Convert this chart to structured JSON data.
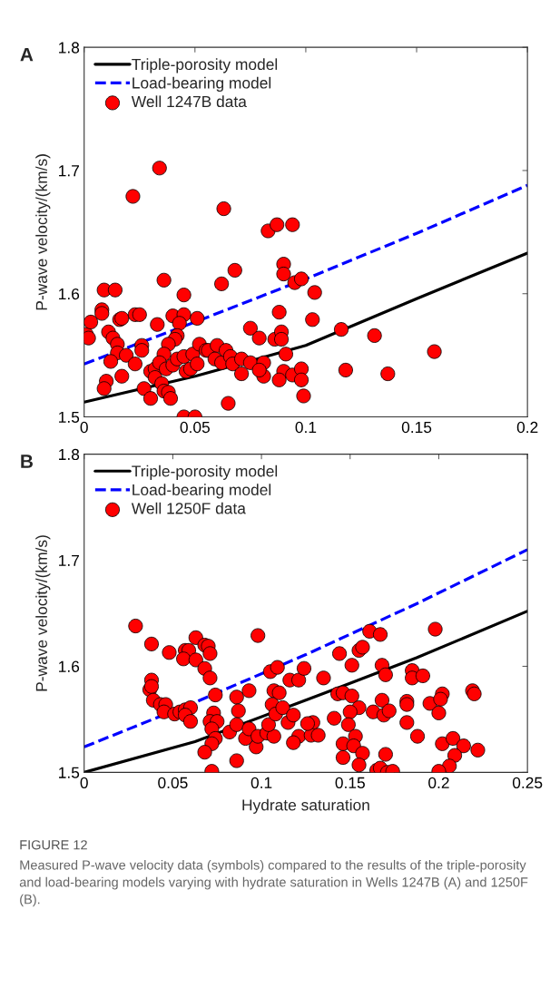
{
  "chart_data": [
    {
      "type": "scatter",
      "title": "A",
      "ylabel": "P-wave velocity/(km/s)",
      "xlim": [
        0,
        0.2
      ],
      "ylim": [
        1.5,
        1.8
      ],
      "xticks": [
        0,
        0.05,
        0.1,
        0.15,
        0.2
      ],
      "yticks": [
        1.5,
        1.6,
        1.7,
        1.8
      ],
      "grid": false,
      "legend": "top left",
      "series": [
        {
          "type": "line",
          "name": "Triple-porosity model",
          "color": "#000000",
          "line_style": "solid",
          "x": [
            0,
            0.05,
            0.1,
            0.15,
            0.2
          ],
          "values": [
            1.512,
            1.533,
            1.558,
            1.596,
            1.633
          ]
        },
        {
          "type": "line",
          "name": "Load-bearing model",
          "color": "#0000ff",
          "line_style": "dashed",
          "x": [
            0,
            0.05,
            0.1,
            0.15,
            0.2
          ],
          "values": [
            1.543,
            1.577,
            1.612,
            1.649,
            1.688
          ]
        },
        {
          "type": "scatter",
          "name": "Well 1247B data",
          "color": "#ff0000",
          "marker": "circle",
          "x": [
            0.001,
            0.002,
            0.003,
            0.009,
            0.014,
            0.008,
            0.008,
            0.011,
            0.013,
            0.015,
            0.015,
            0.012,
            0.01,
            0.009,
            0.017,
            0.016,
            0.017,
            0.023,
            0.025,
            0.019,
            0.023,
            0.026,
            0.026,
            0.027,
            0.03,
            0.03,
            0.032,
            0.033,
            0.036,
            0.04,
            0.045,
            0.045,
            0.043,
            0.051,
            0.042,
            0.041,
            0.038,
            0.036,
            0.034,
            0.032,
            0.035,
            0.036,
            0.038,
            0.039,
            0.037,
            0.04,
            0.042,
            0.045,
            0.046,
            0.049,
            0.048,
            0.051,
            0.052,
            0.055,
            0.056,
            0.06,
            0.059,
            0.062,
            0.064,
            0.066,
            0.067,
            0.071,
            0.075,
            0.071,
            0.065,
            0.045,
            0.05,
            0.062,
            0.068,
            0.075,
            0.079,
            0.081,
            0.081,
            0.079,
            0.083,
            0.087,
            0.094,
            0.088,
            0.09,
            0.09,
            0.095,
            0.098,
            0.104,
            0.103,
            0.086,
            0.089,
            0.089,
            0.091,
            0.09,
            0.088,
            0.094,
            0.098,
            0.098,
            0.099,
            0.116,
            0.131,
            0.158,
            0.118,
            0.137,
            0.022,
            0.034,
            0.063
          ],
          "values": [
            1.567,
            1.564,
            1.577,
            1.603,
            1.603,
            1.587,
            1.584,
            1.569,
            1.564,
            1.559,
            1.552,
            1.545,
            1.529,
            1.523,
            1.533,
            1.579,
            1.58,
            1.583,
            1.583,
            1.55,
            1.543,
            1.558,
            1.554,
            1.523,
            1.515,
            1.537,
            1.539,
            1.575,
            1.611,
            1.582,
            1.599,
            1.583,
            1.576,
            1.58,
            1.566,
            1.563,
            1.559,
            1.551,
            1.544,
            1.532,
            1.527,
            1.521,
            1.52,
            1.515,
            1.539,
            1.542,
            1.547,
            1.549,
            1.537,
            1.551,
            1.539,
            1.543,
            1.559,
            1.554,
            1.554,
            1.558,
            1.547,
            1.544,
            1.554,
            1.549,
            1.543,
            1.547,
            1.544,
            1.535,
            1.511,
            1.5,
            1.5,
            1.608,
            1.619,
            1.572,
            1.564,
            1.544,
            1.533,
            1.538,
            1.651,
            1.656,
            1.656,
            1.585,
            1.624,
            1.616,
            1.609,
            1.612,
            1.601,
            1.579,
            1.563,
            1.569,
            1.563,
            1.551,
            1.537,
            1.53,
            1.534,
            1.539,
            1.53,
            1.517,
            1.571,
            1.566,
            1.553,
            1.538,
            1.535,
            1.679,
            1.702,
            1.669
          ]
        }
      ]
    },
    {
      "type": "scatter",
      "title": "B",
      "xlabel": "Hydrate saturation",
      "ylabel": "P-wave velocity/(km/s)",
      "xlim": [
        0,
        0.25
      ],
      "ylim": [
        1.5,
        1.8
      ],
      "xticks": [
        0,
        0.05,
        0.1,
        0.15,
        0.2,
        0.25
      ],
      "yticks": [
        1.5,
        1.6,
        1.7,
        1.8
      ],
      "grid": false,
      "legend": "top left",
      "annotations": [
        "FIGURE 12",
        "Measured P-wave velocity data (symbols) compared to the results of the triple-porosity and load-bearing models varying with hydrate saturation in Wells 1247B (A) and 1250F (B)."
      ],
      "series": [
        {
          "type": "line",
          "name": "Triple-porosity model",
          "color": "#000000",
          "line_style": "solid",
          "x": [
            0,
            0.0625,
            0.125,
            0.1875,
            0.25
          ],
          "values": [
            1.5,
            1.529,
            1.568,
            1.608,
            1.652
          ]
        },
        {
          "type": "line",
          "name": "Load-bearing model",
          "color": "#0000ff",
          "line_style": "dashed",
          "x": [
            0,
            0.0625,
            0.125,
            0.1875,
            0.25
          ],
          "values": [
            1.524,
            1.566,
            1.611,
            1.659,
            1.71
          ]
        },
        {
          "type": "scatter",
          "name": "Well 1250F data",
          "color": "#ff0000",
          "marker": "circle",
          "x": [
            0.029,
            0.038,
            0.048,
            0.063,
            0.057,
            0.059,
            0.056,
            0.063,
            0.068,
            0.07,
            0.071,
            0.068,
            0.071,
            0.038,
            0.037,
            0.038,
            0.039,
            0.043,
            0.046,
            0.045,
            0.051,
            0.054,
            0.057,
            0.06,
            0.057,
            0.06,
            0.074,
            0.073,
            0.071,
            0.075,
            0.072,
            0.074,
            0.072,
            0.068,
            0.072,
            0.086,
            0.086,
            0.087,
            0.082,
            0.086,
            0.091,
            0.093,
            0.097,
            0.098,
            0.103,
            0.107,
            0.104,
            0.093,
            0.098,
            0.105,
            0.109,
            0.107,
            0.11,
            0.106,
            0.108,
            0.112,
            0.116,
            0.115,
            0.118,
            0.121,
            0.118,
            0.121,
            0.124,
            0.135,
            0.144,
            0.151,
            0.155,
            0.157,
            0.161,
            0.167,
            0.168,
            0.17,
            0.185,
            0.185,
            0.191,
            0.198,
            0.143,
            0.146,
            0.151,
            0.155,
            0.15,
            0.141,
            0.149,
            0.163,
            0.168,
            0.169,
            0.172,
            0.182,
            0.182,
            0.182,
            0.195,
            0.202,
            0.201,
            0.2,
            0.219,
            0.22,
            0.188,
            0.202,
            0.208,
            0.214,
            0.222,
            0.209,
            0.206,
            0.2,
            0.153,
            0.146,
            0.152,
            0.157,
            0.146,
            0.155,
            0.17,
            0.165,
            0.167,
            0.171,
            0.174,
            0.129,
            0.128,
            0.132,
            0.126
          ],
          "values": [
            1.638,
            1.621,
            1.613,
            1.627,
            1.615,
            1.615,
            1.607,
            1.606,
            1.62,
            1.619,
            1.612,
            1.598,
            1.589,
            1.587,
            1.578,
            1.581,
            1.568,
            1.564,
            1.564,
            1.557,
            1.555,
            1.557,
            1.559,
            1.561,
            1.554,
            1.548,
            1.573,
            1.556,
            1.548,
            1.548,
            1.541,
            1.532,
            1.527,
            1.519,
            1.501,
            1.511,
            1.571,
            1.558,
            1.538,
            1.545,
            1.532,
            1.541,
            1.524,
            1.534,
            1.537,
            1.534,
            1.545,
            1.577,
            1.629,
            1.595,
            1.599,
            1.577,
            1.575,
            1.564,
            1.555,
            1.561,
            1.587,
            1.547,
            1.554,
            1.534,
            1.528,
            1.587,
            1.598,
            1.589,
            1.612,
            1.601,
            1.615,
            1.618,
            1.633,
            1.63,
            1.601,
            1.592,
            1.596,
            1.589,
            1.591,
            1.635,
            1.574,
            1.575,
            1.572,
            1.561,
            1.557,
            1.551,
            1.545,
            1.557,
            1.568,
            1.554,
            1.558,
            1.567,
            1.564,
            1.547,
            1.565,
            1.574,
            1.569,
            1.556,
            1.577,
            1.574,
            1.534,
            1.527,
            1.532,
            1.525,
            1.521,
            1.516,
            1.506,
            1.501,
            1.534,
            1.527,
            1.525,
            1.518,
            1.514,
            1.507,
            1.517,
            1.502,
            1.504,
            1.5,
            1.501,
            1.547,
            1.535,
            1.535,
            1.546
          ]
        }
      ]
    }
  ]
}
